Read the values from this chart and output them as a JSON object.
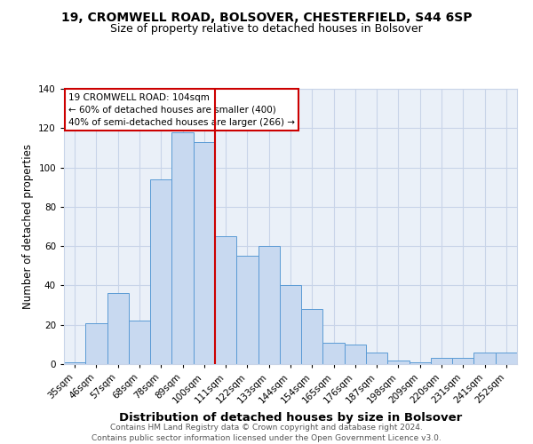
{
  "title1": "19, CROMWELL ROAD, BOLSOVER, CHESTERFIELD, S44 6SP",
  "title2": "Size of property relative to detached houses in Bolsover",
  "xlabel": "Distribution of detached houses by size in Bolsover",
  "ylabel": "Number of detached properties",
  "bar_labels": [
    "35sqm",
    "46sqm",
    "57sqm",
    "68sqm",
    "78sqm",
    "89sqm",
    "100sqm",
    "111sqm",
    "122sqm",
    "133sqm",
    "144sqm",
    "154sqm",
    "165sqm",
    "176sqm",
    "187sqm",
    "198sqm",
    "209sqm",
    "220sqm",
    "231sqm",
    "241sqm",
    "252sqm"
  ],
  "bar_values": [
    1,
    21,
    36,
    22,
    94,
    118,
    113,
    65,
    55,
    60,
    40,
    28,
    11,
    10,
    6,
    2,
    1,
    3,
    3,
    6,
    6
  ],
  "bar_color": "#c8d9f0",
  "bar_edge_color": "#5b9bd5",
  "vline_color": "#cc0000",
  "annotation_box_text": "19 CROMWELL ROAD: 104sqm\n← 60% of detached houses are smaller (400)\n40% of semi-detached houses are larger (266) →",
  "box_edge_color": "#cc0000",
  "box_face_color": "#ffffff",
  "ylim": [
    0,
    140
  ],
  "yticks": [
    0,
    20,
    40,
    60,
    80,
    100,
    120,
    140
  ],
  "grid_color": "#c8d4e8",
  "background_color": "#eaf0f8",
  "footer_text": "Contains HM Land Registry data © Crown copyright and database right 2024.\nContains public sector information licensed under the Open Government Licence v3.0.",
  "title1_fontsize": 10,
  "title2_fontsize": 9,
  "xlabel_fontsize": 9.5,
  "ylabel_fontsize": 8.5,
  "tick_fontsize": 7.5,
  "footer_fontsize": 6.5,
  "annotation_fontsize": 7.5
}
